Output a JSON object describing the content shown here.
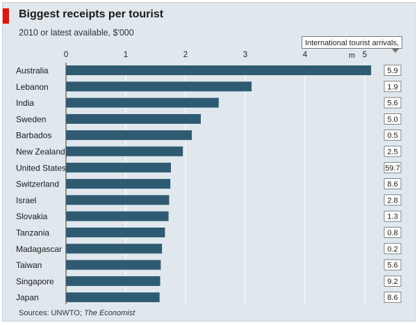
{
  "header": {
    "title": "Biggest receipts per tourist",
    "subtitle": "2010 or latest available, $'000"
  },
  "arrivals_header": "International tourist arrivals, m",
  "source": {
    "prefix": "Sources: UNWTO; ",
    "publication": "The Economist"
  },
  "colors": {
    "bar": "#2e5b72",
    "background": "#e0e8ee",
    "accent": "#e3120b"
  },
  "chart_data": {
    "type": "bar",
    "orientation": "horizontal",
    "title": "Biggest receipts per tourist",
    "subtitle": "2010 or latest available, $'000",
    "xlim": [
      0,
      5.5
    ],
    "xticks": [
      "0",
      "1",
      "2",
      "3",
      "4",
      "5"
    ],
    "xtick_values": [
      0,
      1,
      2,
      3,
      4,
      5
    ],
    "grid": true,
    "categories": [
      "Australia",
      "Lebanon",
      "India",
      "Sweden",
      "Barbados",
      "New Zealand",
      "United States",
      "Switzerland",
      "Israel",
      "Slovakia",
      "Tanzania",
      "Madagascar",
      "Taiwan",
      "Singapore",
      "Japan"
    ],
    "series": [
      {
        "values": [
          5.1,
          3.1,
          2.55,
          2.25,
          2.1,
          1.95,
          1.75,
          1.74,
          1.72,
          1.71,
          1.65,
          1.6,
          1.58,
          1.57,
          1.56
        ]
      }
    ],
    "arrivals": [
      "5.9",
      "1.9",
      "5.6",
      "5.0",
      "0.5",
      "2.5",
      "59.7",
      "8.6",
      "2.8",
      "1.3",
      "0.8",
      "0.2",
      "5.6",
      "9.2",
      "8.6"
    ]
  }
}
